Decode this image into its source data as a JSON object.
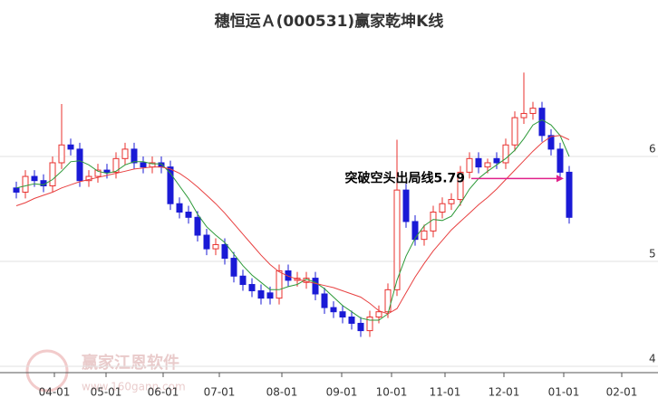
{
  "chart_data": {
    "type": "candlestick",
    "title": "穗恒运Ａ(000531)赢家乾坤K线",
    "open": [
      5.7,
      5.66,
      5.81,
      5.77,
      5.72,
      5.94,
      6.11,
      6.07,
      5.77,
      5.81,
      5.87,
      5.85,
      5.98,
      6.07,
      5.94,
      5.9,
      5.94,
      5.9,
      5.55,
      5.47,
      5.42,
      5.25,
      5.12,
      5.16,
      5.03,
      4.86,
      4.78,
      4.72,
      4.7,
      4.65,
      4.91,
      4.82,
      4.8,
      4.84,
      4.69,
      4.56,
      4.52,
      4.47,
      4.41,
      4.34,
      4.47,
      4.52,
      4.73,
      5.68,
      5.38,
      5.21,
      5.29,
      5.47,
      5.55,
      5.59,
      5.85,
      5.98,
      5.9,
      5.98,
      5.94,
      6.11,
      6.37,
      6.41,
      6.46,
      6.2,
      6.07,
      5.85
    ],
    "high": [
      5.76,
      5.87,
      5.87,
      5.83,
      6.0,
      6.5,
      6.17,
      6.13,
      5.87,
      5.93,
      5.93,
      6.04,
      6.13,
      6.13,
      6.0,
      6.0,
      6.0,
      5.96,
      5.61,
      5.53,
      5.48,
      5.31,
      5.22,
      5.22,
      5.09,
      4.92,
      4.84,
      4.78,
      4.76,
      4.97,
      4.97,
      4.9,
      4.9,
      4.9,
      4.75,
      4.62,
      4.58,
      4.53,
      4.47,
      4.53,
      4.58,
      4.79,
      6.16,
      5.74,
      5.44,
      5.35,
      5.53,
      5.61,
      5.65,
      5.91,
      6.04,
      6.04,
      5.98,
      6.04,
      6.17,
      6.43,
      6.8,
      6.52,
      6.52,
      6.26,
      6.13,
      5.91
    ],
    "low": [
      5.6,
      5.6,
      5.71,
      5.66,
      5.66,
      5.88,
      6.01,
      5.71,
      5.71,
      5.75,
      5.79,
      5.79,
      5.92,
      5.88,
      5.84,
      5.84,
      5.84,
      5.49,
      5.41,
      5.36,
      5.19,
      5.06,
      5.06,
      4.97,
      4.8,
      4.72,
      4.66,
      4.59,
      4.59,
      4.59,
      4.76,
      4.76,
      4.74,
      4.63,
      4.5,
      4.46,
      4.41,
      4.35,
      4.28,
      4.28,
      4.41,
      4.46,
      4.67,
      5.32,
      5.15,
      5.15,
      5.23,
      5.41,
      5.49,
      5.53,
      5.79,
      5.84,
      5.84,
      5.88,
      5.88,
      6.05,
      6.31,
      6.35,
      6.14,
      6.01,
      5.79,
      5.36
    ],
    "close": [
      5.66,
      5.81,
      5.77,
      5.72,
      5.94,
      6.11,
      6.07,
      5.77,
      5.81,
      5.87,
      5.85,
      5.98,
      6.07,
      5.94,
      5.9,
      5.94,
      5.9,
      5.55,
      5.47,
      5.42,
      5.25,
      5.12,
      5.16,
      5.03,
      4.86,
      4.78,
      4.72,
      4.65,
      4.65,
      4.91,
      4.82,
      4.84,
      4.84,
      4.69,
      4.56,
      4.52,
      4.47,
      4.41,
      4.34,
      4.47,
      4.52,
      4.73,
      5.68,
      5.38,
      5.21,
      5.29,
      5.47,
      5.55,
      5.59,
      5.85,
      5.98,
      5.9,
      5.94,
      5.94,
      6.11,
      6.37,
      6.41,
      6.46,
      6.2,
      6.07,
      5.85,
      5.42
    ],
    "up_color": "#e8302e",
    "down_color": "#1a1ad6",
    "series": [
      {
        "color": "#2e9a3a",
        "values": [
          5.7,
          5.72,
          5.74,
          5.73,
          5.78,
          5.86,
          5.95,
          5.96,
          5.92,
          5.86,
          5.84,
          5.86,
          5.92,
          5.95,
          5.95,
          5.93,
          5.93,
          5.84,
          5.72,
          5.6,
          5.45,
          5.33,
          5.25,
          5.18,
          5.07,
          4.96,
          4.87,
          4.8,
          4.73,
          4.73,
          4.76,
          4.78,
          4.83,
          4.8,
          4.74,
          4.66,
          4.58,
          4.52,
          4.46,
          4.44,
          4.44,
          4.5,
          4.82,
          5.05,
          5.22,
          5.34,
          5.4,
          5.39,
          5.43,
          5.55,
          5.69,
          5.79,
          5.86,
          5.92,
          5.98,
          6.06,
          6.17,
          6.3,
          6.35,
          6.3,
          6.2,
          6.0
        ]
      },
      {
        "color": "#e84040",
        "values": [
          5.53,
          5.56,
          5.6,
          5.63,
          5.66,
          5.7,
          5.73,
          5.76,
          5.78,
          5.8,
          5.82,
          5.84,
          5.86,
          5.88,
          5.89,
          5.9,
          5.9,
          5.88,
          5.84,
          5.78,
          5.71,
          5.63,
          5.55,
          5.46,
          5.36,
          5.26,
          5.16,
          5.06,
          4.97,
          4.9,
          4.86,
          4.83,
          4.81,
          4.79,
          4.77,
          4.75,
          4.72,
          4.69,
          4.66,
          4.6,
          4.53,
          4.5,
          4.55,
          4.7,
          4.85,
          4.98,
          5.1,
          5.2,
          5.3,
          5.38,
          5.46,
          5.54,
          5.61,
          5.69,
          5.78,
          5.87,
          5.96,
          6.05,
          6.13,
          6.19,
          6.2,
          6.16
        ]
      }
    ],
    "xlim": [
      -1.8,
      69
    ],
    "ylim": [
      3.94,
      7.05
    ],
    "xticks": [
      {
        "value": 4.2,
        "label": "04-01"
      },
      {
        "value": 9.9,
        "label": "05-01"
      },
      {
        "value": 16.2,
        "label": "06-01"
      },
      {
        "value": 22.4,
        "label": "07-01"
      },
      {
        "value": 29.3,
        "label": "08-01"
      },
      {
        "value": 35.9,
        "label": "09-01"
      },
      {
        "value": 41.4,
        "label": "10-01"
      },
      {
        "value": 47.3,
        "label": "11-01"
      },
      {
        "value": 53.8,
        "label": "12-01"
      },
      {
        "value": 60.4,
        "label": "01-01"
      },
      {
        "value": 66.8,
        "label": "02-01"
      }
    ],
    "yticks": [
      4,
      5,
      6
    ],
    "grid": true,
    "annotation": {
      "text": "突破空头出局线5.79",
      "value": 5.79,
      "color": "#e0208a"
    },
    "watermark": {
      "name": "赢家江恩软件",
      "url": "www.160gann.com"
    }
  }
}
